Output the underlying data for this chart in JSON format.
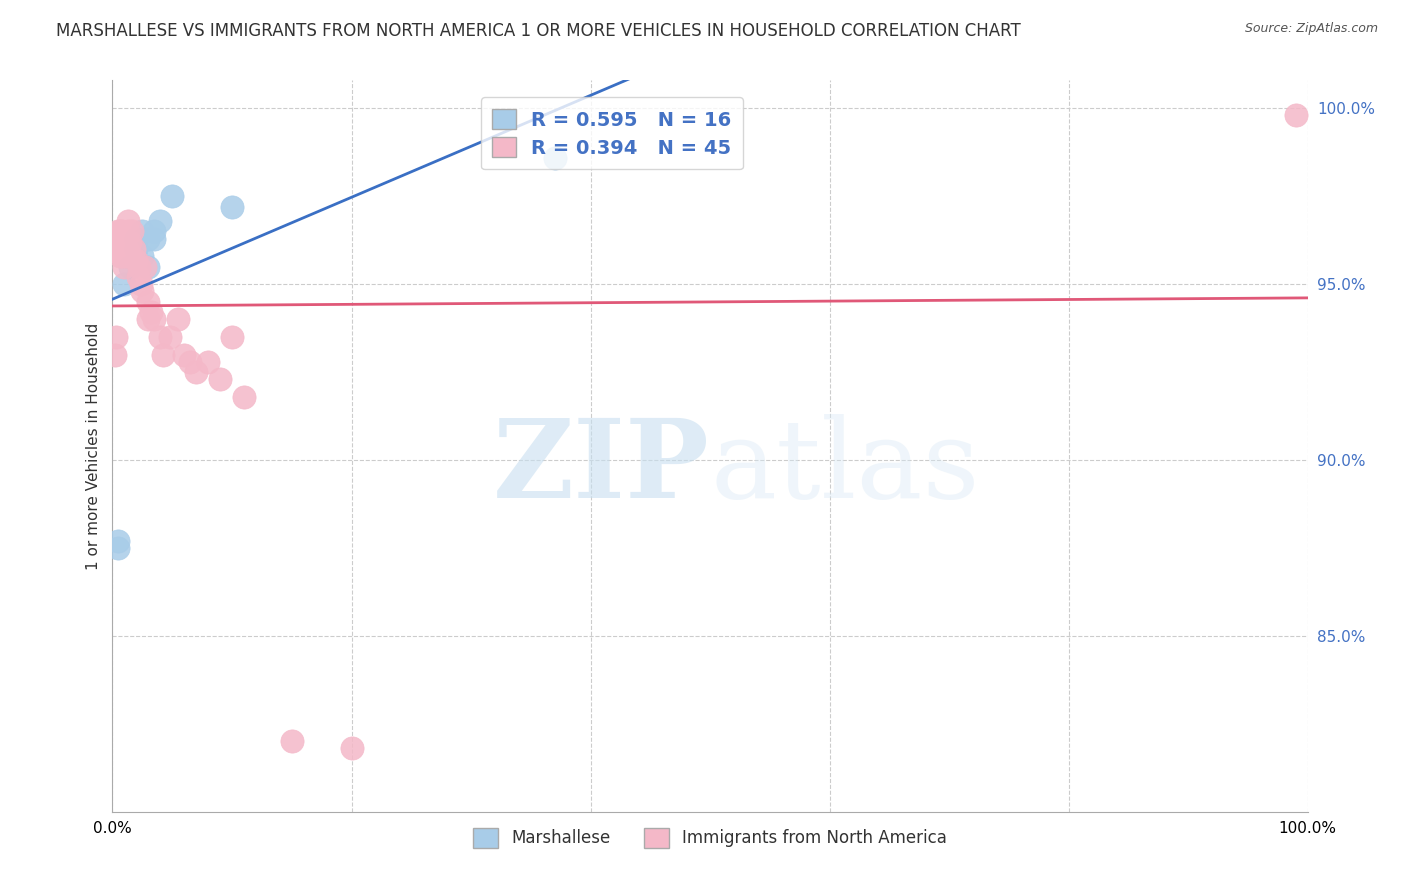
{
  "title": "MARSHALLESE VS IMMIGRANTS FROM NORTH AMERICA 1 OR MORE VEHICLES IN HOUSEHOLD CORRELATION CHART",
  "source": "Source: ZipAtlas.com",
  "ylabel": "1 or more Vehicles in Household",
  "xlabel": "",
  "blue_label": "Marshallese",
  "pink_label": "Immigrants from North America",
  "blue_R": 0.595,
  "blue_N": 16,
  "pink_R": 0.394,
  "pink_N": 45,
  "blue_color": "#a8cce8",
  "pink_color": "#f4b8c8",
  "blue_line_color": "#3a6fc4",
  "pink_line_color": "#e05878",
  "xlim": [
    0.0,
    1.0
  ],
  "ylim": [
    0.8,
    1.008
  ],
  "yticks": [
    0.85,
    0.9,
    0.95,
    1.0
  ],
  "ytick_labels": [
    "85.0%",
    "90.0%",
    "95.0%",
    "100.0%"
  ],
  "xticks": [
    0.0,
    0.2,
    0.4,
    0.6,
    0.8,
    1.0
  ],
  "xtick_labels": [
    "0.0%",
    "",
    "",
    "",
    "",
    "100.0%"
  ],
  "blue_x": [
    0.005,
    0.005,
    0.01,
    0.015,
    0.02,
    0.02,
    0.025,
    0.025,
    0.03,
    0.03,
    0.035,
    0.035,
    0.04,
    0.05,
    0.1,
    0.37
  ],
  "blue_y": [
    0.875,
    0.877,
    0.95,
    0.955,
    0.96,
    0.963,
    0.958,
    0.965,
    0.955,
    0.963,
    0.963,
    0.965,
    0.968,
    0.975,
    0.972,
    0.986
  ],
  "pink_x": [
    0.002,
    0.003,
    0.003,
    0.005,
    0.005,
    0.006,
    0.006,
    0.007,
    0.008,
    0.008,
    0.009,
    0.01,
    0.01,
    0.011,
    0.012,
    0.013,
    0.013,
    0.015,
    0.015,
    0.016,
    0.018,
    0.02,
    0.021,
    0.022,
    0.024,
    0.025,
    0.027,
    0.03,
    0.03,
    0.032,
    0.035,
    0.04,
    0.042,
    0.048,
    0.055,
    0.06,
    0.065,
    0.07,
    0.08,
    0.09,
    0.1,
    0.11,
    0.15,
    0.2,
    0.99
  ],
  "pink_y": [
    0.93,
    0.935,
    0.96,
    0.96,
    0.965,
    0.958,
    0.965,
    0.962,
    0.958,
    0.965,
    0.96,
    0.955,
    0.962,
    0.958,
    0.96,
    0.965,
    0.968,
    0.958,
    0.962,
    0.965,
    0.96,
    0.957,
    0.952,
    0.955,
    0.95,
    0.948,
    0.955,
    0.945,
    0.94,
    0.942,
    0.94,
    0.935,
    0.93,
    0.935,
    0.94,
    0.93,
    0.928,
    0.925,
    0.928,
    0.923,
    0.935,
    0.918,
    0.82,
    0.818,
    0.998
  ],
  "watermark_zip": "ZIP",
  "watermark_atlas": "atlas",
  "background_color": "#ffffff",
  "legend_box_color": "#ffffff",
  "title_fontsize": 12,
  "label_fontsize": 11,
  "tick_fontsize": 11,
  "legend_fontsize": 14
}
